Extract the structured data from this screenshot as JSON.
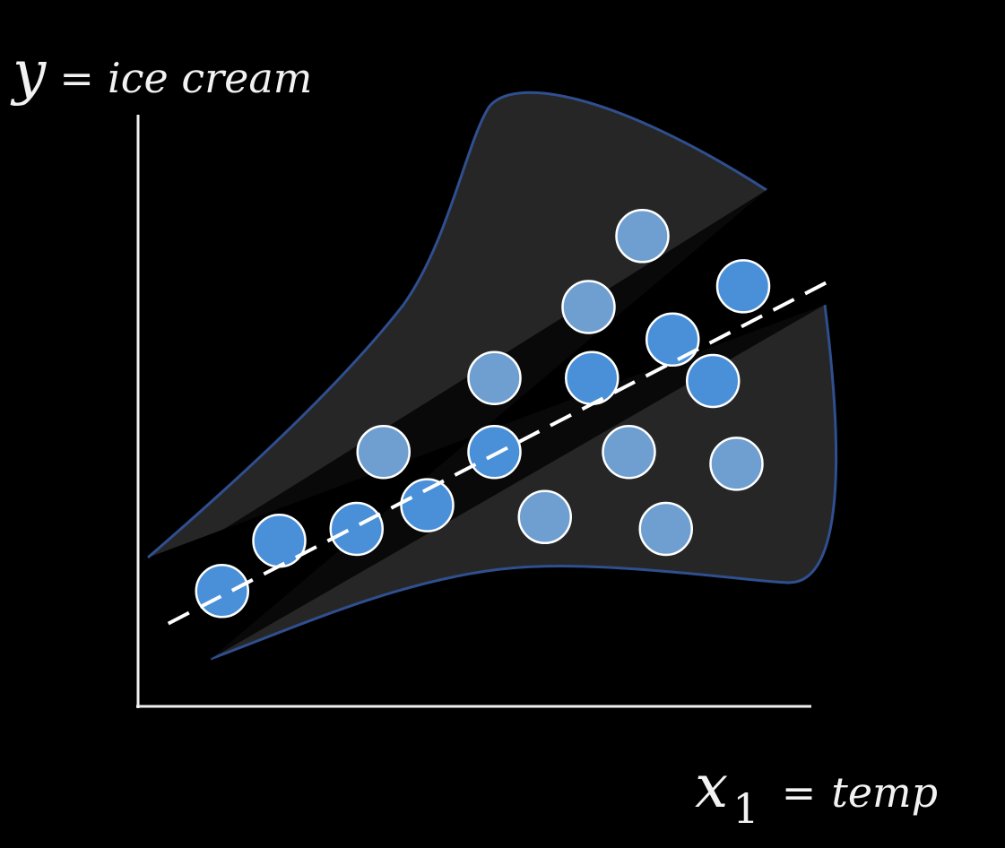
{
  "chart_data": {
    "type": "scatter",
    "title": "",
    "ylabel": {
      "var": "y",
      "eq": "=",
      "text": "ice cream"
    },
    "xlabel": {
      "var": "x",
      "sub": "1",
      "eq": "=",
      "text": "temp"
    },
    "xlim": [
      0,
      10
    ],
    "ylim": [
      0,
      10
    ],
    "grid": false,
    "colors": {
      "background": "#000000",
      "axis": "#f0f0f0",
      "region_fill": "#262626",
      "region_stroke": "#2f4f8f",
      "point_on_line": "#4a90d9",
      "point_off_line": "#6f9fd0",
      "point_stroke": "#ffffff",
      "trend_line": "#ffffff"
    },
    "trend_line": {
      "style": "dashed",
      "x": [
        0.45,
        10.3
      ],
      "y": [
        1.4,
        7.2
      ]
    },
    "points": [
      {
        "x": 1.25,
        "y": 1.95
      },
      {
        "x": 2.1,
        "y": 2.8
      },
      {
        "x": 3.25,
        "y": 3.0
      },
      {
        "x": 3.65,
        "y": 4.3
      },
      {
        "x": 4.3,
        "y": 3.4
      },
      {
        "x": 5.3,
        "y": 4.3
      },
      {
        "x": 5.3,
        "y": 5.55
      },
      {
        "x": 6.05,
        "y": 3.2
      },
      {
        "x": 6.7,
        "y": 6.75
      },
      {
        "x": 6.75,
        "y": 5.55
      },
      {
        "x": 7.3,
        "y": 4.3
      },
      {
        "x": 7.5,
        "y": 7.95
      },
      {
        "x": 7.95,
        "y": 6.2
      },
      {
        "x": 7.85,
        "y": 3.0
      },
      {
        "x": 8.55,
        "y": 5.5
      },
      {
        "x": 9.0,
        "y": 7.1
      },
      {
        "x": 8.9,
        "y": 4.1
      }
    ]
  }
}
